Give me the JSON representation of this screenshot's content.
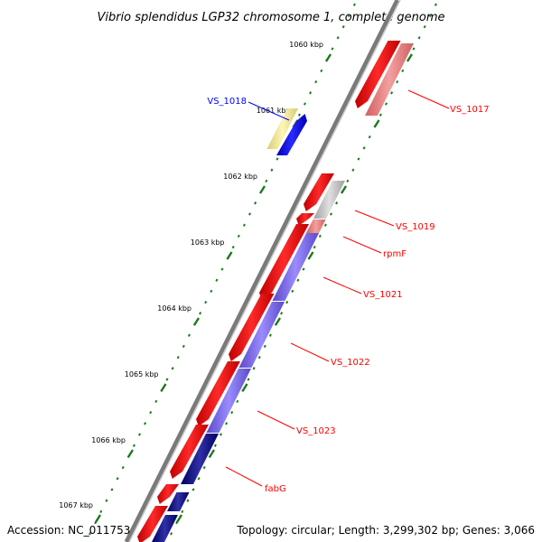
{
  "title": "Vibrio splendidus LGP32 chromosome 1, complete genome",
  "ticks": [
    {
      "label": "1060 kbp",
      "major": true
    },
    {
      "label": "1061 kbp",
      "major": true
    },
    {
      "label": "1062 kbp",
      "major": true
    },
    {
      "label": "1063 kbp",
      "major": true
    },
    {
      "label": "1064 kbp",
      "major": true
    },
    {
      "label": "1065 kbp",
      "major": true
    },
    {
      "label": "1066 kbp",
      "major": true
    },
    {
      "label": "1067 kbp",
      "major": true
    }
  ],
  "genes": [
    {
      "label": "VS_1017",
      "strand": "reverse",
      "color": "#ff0000"
    },
    {
      "label": "VS_1018",
      "strand": "forward",
      "color": "#0000ff"
    },
    {
      "label": "VS_1019",
      "strand": "reverse",
      "color": "#ff0000"
    },
    {
      "label": "rpmF",
      "strand": "reverse",
      "color": "#ff0000"
    },
    {
      "label": "VS_1021",
      "strand": "reverse",
      "color": "#ff0000"
    },
    {
      "label": "VS_1022",
      "strand": "reverse",
      "color": "#ff0000"
    },
    {
      "label": "VS_1023",
      "strand": "reverse",
      "color": "#ff0000"
    },
    {
      "label": "fabG",
      "strand": "reverse",
      "color": "#ff0000"
    }
  ],
  "colors": {
    "backbone": "#808080",
    "tick": "#1a7a1a",
    "cds_reverse": "#ff0000",
    "cds_reverse_light": "#f08080",
    "cds_forward": "#0000ff",
    "feature_purple": "#7b68ee",
    "feature_navy": "#000080",
    "feature_yellow": "#f0e68c",
    "feature_gray": "#c0c0c0"
  },
  "footer": {
    "accession": "Accession: NC_011753",
    "topology": "Topology: circular; Length: 3,299,302 bp; Genes: 3,066"
  }
}
